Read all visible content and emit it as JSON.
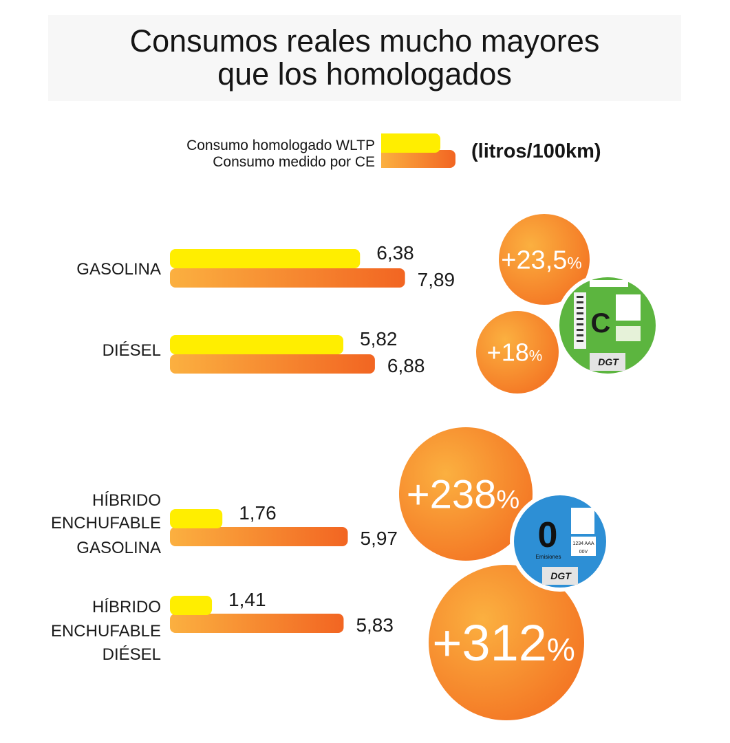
{
  "title_lines": [
    "Consumos reales mucho mayores",
    "que los homologados"
  ],
  "legend": [
    {
      "label": "Consumo homologado WLTP",
      "color": "#ffee00"
    },
    {
      "label": "Consumo medido por CE",
      "color": "#f39a2b"
    }
  ],
  "units": "(litros/100km)",
  "colors": {
    "wltp": "#ffee00",
    "ce_start": "#fbb040",
    "ce_end": "#f26522",
    "circle_start": "#fbb040",
    "circle_end": "#f37021",
    "sticker_c": "#5cb53f",
    "sticker_0": "#2d8fd5"
  },
  "chart_data": {
    "type": "bar",
    "orientation": "horizontal",
    "categories": [
      [
        "GASOLINA"
      ],
      [
        "DIÉSEL"
      ],
      [
        "HÍBRIDO",
        "ENCHUFABLE",
        "GASOLINA"
      ],
      [
        "HÍBRIDO",
        "ENCHUFABLE",
        "DIÉSEL"
      ]
    ],
    "series": [
      {
        "name": "Consumo homologado WLTP",
        "values": [
          6.38,
          5.82,
          1.76,
          1.41
        ],
        "labels": [
          "6,38",
          "5,82",
          "1,76",
          "1,41"
        ]
      },
      {
        "name": "Consumo medido por CE",
        "values": [
          7.89,
          6.88,
          5.97,
          5.83
        ],
        "labels": [
          "7,89",
          "6,88",
          "5,97",
          "5,83"
        ]
      }
    ],
    "differences": [
      {
        "num": "+23,5",
        "pct": "%"
      },
      {
        "num": "+18",
        "pct": "%"
      },
      {
        "num": "+238",
        "pct": "%"
      },
      {
        "num": "+312",
        "pct": "%"
      }
    ],
    "stickers": [
      {
        "name": "C",
        "text": "C",
        "brand": "DGT"
      },
      {
        "name": "0",
        "text": "0",
        "caption": "Emisiones",
        "plate": "1234 AAA",
        "extra": "00V",
        "brand": "DGT"
      }
    ]
  }
}
